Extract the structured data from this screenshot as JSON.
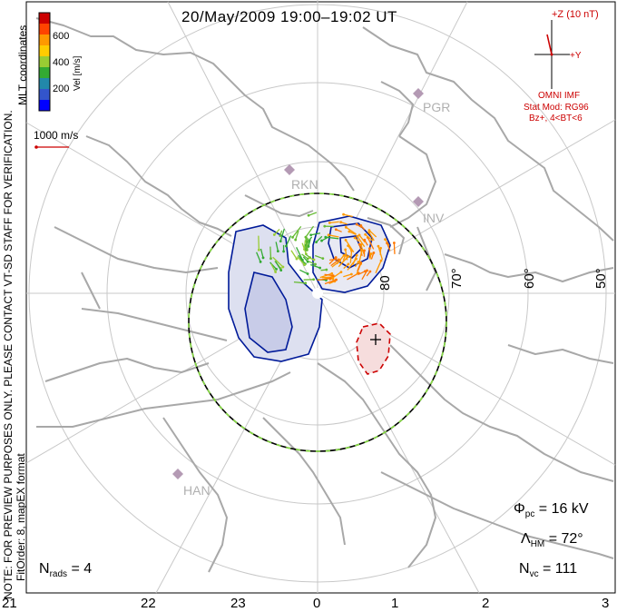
{
  "title": "20/May/2009 19:00–19:02 UT",
  "colorbar": {
    "label": "Vel [m/s]",
    "ticks": [
      "600",
      "400",
      "200"
    ],
    "colors": [
      "#cc0000",
      "#ff4400",
      "#ff9900",
      "#ffcc00",
      "#99cc33",
      "#33aa33",
      "#2288aa",
      "#3355cc",
      "#0000ff"
    ]
  },
  "coord_label": "MLT coordinates",
  "velocity_scale": "1000 m/s",
  "side_note": "NOTE: FOR PREVIEW PURPOSES ONLY. PLEASE CONTACT VT-SD STAFF FOR VERIFICATION.",
  "fit_info": "FitOrder: 8, mapEX format",
  "imf": {
    "z_label": "+Z (10 nT)",
    "y_label": "+Y",
    "source": "OMNI IMF",
    "model": "Stat Mod: RG96",
    "condition": "Bz+, 4<BT<6"
  },
  "stations": [
    "PGR",
    "RKN",
    "INV",
    "HAN"
  ],
  "lat_labels": [
    "80",
    "70°",
    "60°",
    "50°"
  ],
  "stats": {
    "phi_pc": "Φpc = 16 kV",
    "phi_sym": "Φ",
    "phi_sub": "pc",
    "phi_val": "= 16 kV",
    "lambda_sym": "Λ",
    "lambda_sub": "HM",
    "lambda_val": "= 72°",
    "nvc_sym": "N",
    "nvc_sub": "vc",
    "nvc_val": "= 111",
    "nrads_sym": "N",
    "nrads_sub": "rads",
    "nrads_val": "= 4"
  },
  "mlt_ticks": [
    "21",
    "22",
    "23",
    "0",
    "1",
    "2",
    "3"
  ],
  "colors": {
    "coast": "#a8a8a8",
    "grid": "#c8c8c8",
    "positive_contour": "#cc0000",
    "negative_contour": "#001a99",
    "negative_fill": "#dde0f0",
    "boundary_dash": "#88dd44"
  }
}
